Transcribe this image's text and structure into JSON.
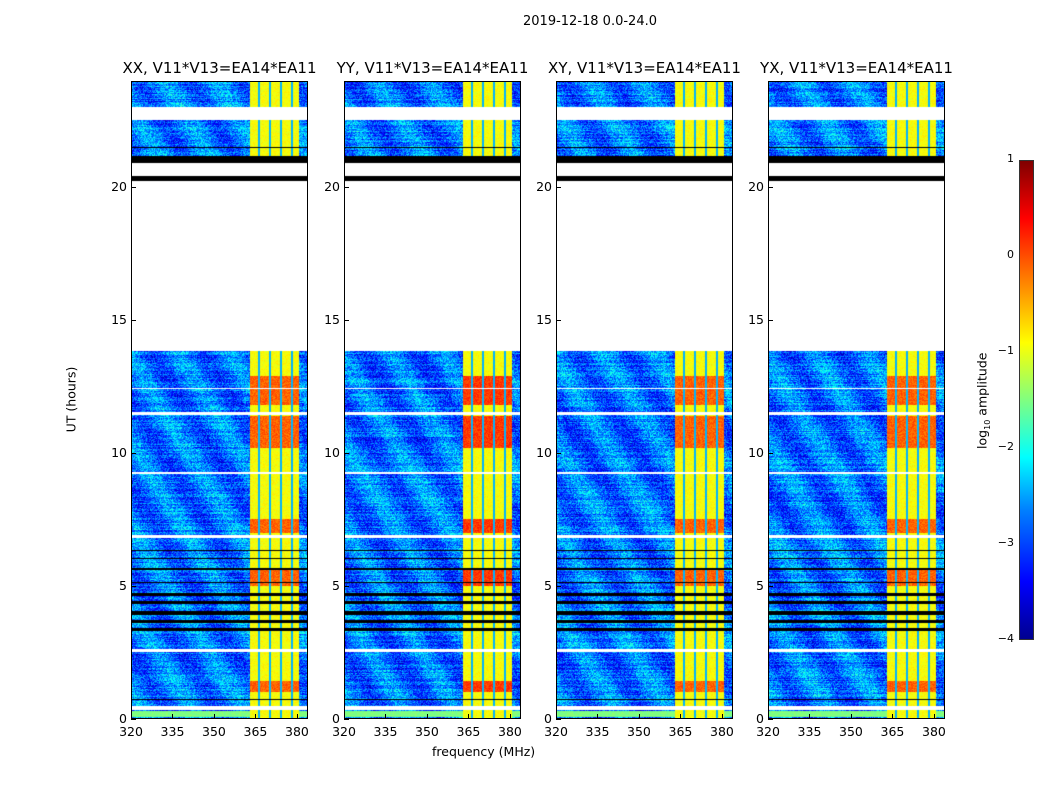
{
  "suptitle": "2019-12-18 0.0-24.0",
  "chart_data": {
    "type": "heatmap",
    "title": "2019-12-18 0.0-24.0",
    "xlabel": "frequency (MHz)",
    "ylabel": "UT (hours)",
    "xlim": [
      320,
      384
    ],
    "ylim": [
      0,
      24
    ],
    "xticks": [
      "320",
      "335",
      "350",
      "365",
      "380"
    ],
    "xtick_values": [
      320,
      335,
      350,
      365,
      380
    ],
    "yticks": [
      "0",
      "5",
      "10",
      "15",
      "20"
    ],
    "ytick_values": [
      0,
      5,
      10,
      15,
      20
    ],
    "panels": [
      {
        "title": "XX, V11*V13=EA14*EA11"
      },
      {
        "title": "YY, V11*V13=EA14*EA11"
      },
      {
        "title": "XY, V11*V13=EA14*EA11"
      },
      {
        "title": "YX, V11*V13=EA14*EA11"
      }
    ],
    "colorbar": {
      "label": "log10 amplitude",
      "label_main": "log",
      "label_sub": "10",
      "label_rest": " amplitude",
      "range": [
        -4,
        1
      ],
      "ticks": [
        "1",
        "0",
        "−1",
        "−2",
        "−3",
        "−4"
      ],
      "tick_values": [
        1,
        0,
        -1,
        -2,
        -3,
        -4
      ],
      "colormap": "jet"
    },
    "background_level": -2.8,
    "rfi_band_MHz": [
      363,
      381
    ],
    "rfi_level": -0.9,
    "rfi_gap_channels_MHz": [
      366.5,
      370.5,
      374.5,
      378.5
    ],
    "hot_intervals_hours": [
      [
        7.0,
        7.5
      ],
      [
        10.2,
        11.4
      ],
      [
        11.8,
        12.9
      ],
      [
        1.0,
        1.4
      ],
      [
        5.0,
        5.6
      ]
    ],
    "no_data_hours": [
      [
        0.3,
        0.45
      ],
      [
        2.5,
        2.62
      ],
      [
        6.78,
        6.92
      ],
      [
        13.85,
        20.25
      ],
      [
        20.45,
        20.95
      ],
      [
        22.55,
        23.05
      ],
      [
        9.2,
        9.3
      ],
      [
        11.45,
        11.55
      ],
      [
        12.4,
        12.45
      ]
    ],
    "flagged_hours": [
      [
        0.68,
        0.72
      ],
      [
        3.3,
        3.38
      ],
      [
        3.6,
        3.7
      ],
      [
        3.9,
        4.05
      ],
      [
        4.3,
        4.4
      ],
      [
        4.6,
        4.7
      ],
      [
        5.1,
        5.13
      ],
      [
        5.6,
        5.65
      ],
      [
        6.0,
        6.05
      ],
      [
        6.3,
        6.35
      ],
      [
        20.25,
        20.45
      ],
      [
        20.95,
        21.2
      ],
      [
        21.5,
        21.55
      ],
      [
        22.1,
        22.13
      ]
    ],
    "green_band_hours": [
      [
        0.05,
        0.28
      ]
    ]
  }
}
